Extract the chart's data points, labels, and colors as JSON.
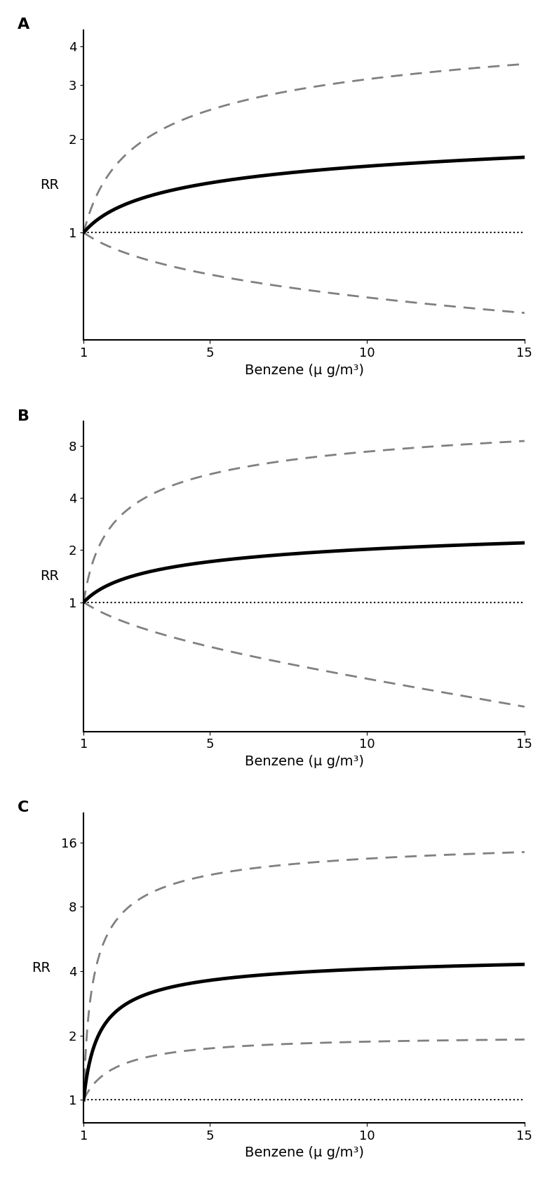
{
  "panels": [
    {
      "label": "A",
      "ylabel": "RR",
      "xlabel": "Benzene (μ g/m³)",
      "yticks": [
        1,
        2,
        3,
        4
      ],
      "ylim": [
        0.45,
        4.5
      ],
      "main_color": "#000000",
      "ci_color": "#808080",
      "main_lw": 3.5,
      "ci_lw": 2.0
    },
    {
      "label": "B",
      "ylabel": "RR",
      "xlabel": "Benzene (μ g/m³)",
      "yticks": [
        1,
        2,
        4,
        8
      ],
      "ylim": [
        0.18,
        11
      ],
      "main_color": "#000000",
      "ci_color": "#808080",
      "main_lw": 3.5,
      "ci_lw": 2.0
    },
    {
      "label": "C",
      "ylabel": "RR",
      "xlabel": "Benzene (μ g/m³)",
      "yticks": [
        1,
        2,
        4,
        8,
        16
      ],
      "ylim": [
        0.78,
        22
      ],
      "main_color": "#000000",
      "ci_color": "#808080",
      "main_lw": 3.5,
      "ci_lw": 2.0
    }
  ],
  "xticks": [
    1,
    5,
    10,
    15
  ],
  "xlim": [
    1,
    15
  ],
  "background_color": "#ffffff",
  "dotted_line_y": 1.0,
  "dotted_lw": 1.5
}
